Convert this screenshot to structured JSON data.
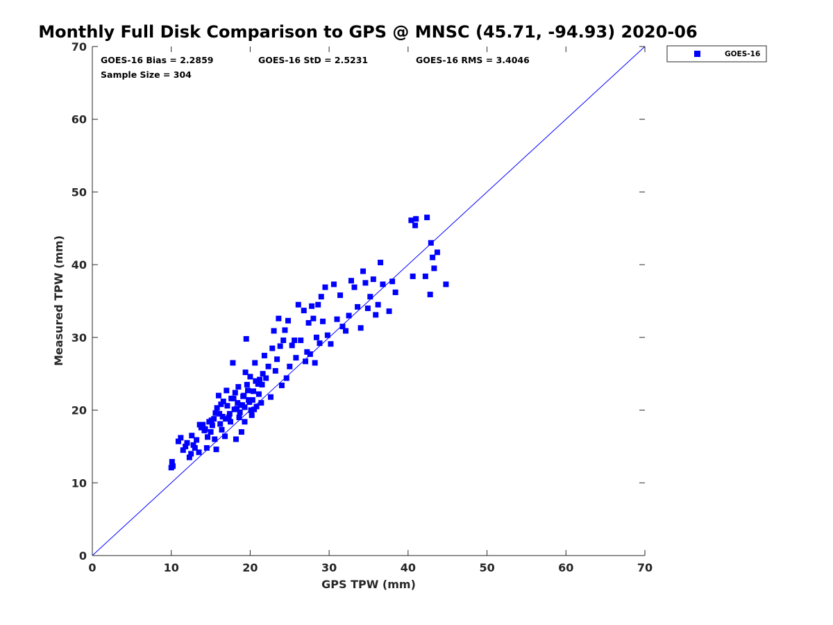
{
  "chart_data": {
    "type": "scatter",
    "title": "Monthly Full Disk Comparison to GPS @ MNSC (45.71, -94.93) 2020-06",
    "xlabel": "GPS TPW (mm)",
    "ylabel": "Measured TPW (mm)",
    "xlim": [
      0,
      70
    ],
    "ylim": [
      0,
      70
    ],
    "xticks": [
      0,
      10,
      20,
      30,
      40,
      50,
      60,
      70
    ],
    "yticks": [
      0,
      10,
      20,
      30,
      40,
      50,
      60,
      70
    ],
    "grid": false,
    "legend_position": "outside-top-right",
    "reference_line": {
      "name": "1:1 line",
      "color": "#0000ff",
      "from": [
        0,
        0
      ],
      "to": [
        70,
        70
      ]
    },
    "stats": {
      "bias": "GOES-16 Bias = 2.2859",
      "std": "GOES-16 StD = 2.5231",
      "rms": "GOES-16 RMS = 3.4046",
      "sample_size": "Sample Size = 304"
    },
    "series": [
      {
        "name": "GOES-16",
        "color": "#0000ff",
        "marker": "square",
        "points": [
          [
            10.0,
            12.1
          ],
          [
            10.1,
            12.9
          ],
          [
            10.2,
            12.3
          ],
          [
            10.9,
            15.7
          ],
          [
            11.2,
            16.2
          ],
          [
            11.5,
            14.5
          ],
          [
            11.8,
            15.0
          ],
          [
            12.0,
            15.5
          ],
          [
            12.3,
            13.5
          ],
          [
            12.5,
            14.0
          ],
          [
            12.6,
            16.5
          ],
          [
            12.8,
            15.2
          ],
          [
            13.0,
            14.8
          ],
          [
            13.2,
            15.9
          ],
          [
            13.5,
            14.2
          ],
          [
            13.8,
            17.6
          ],
          [
            14.0,
            18.0
          ],
          [
            14.2,
            17.2
          ],
          [
            14.5,
            14.8
          ],
          [
            14.6,
            16.3
          ],
          [
            14.8,
            18.4
          ],
          [
            15.0,
            17.0
          ],
          [
            15.2,
            17.9
          ],
          [
            15.4,
            18.8
          ],
          [
            15.5,
            16.0
          ],
          [
            15.7,
            14.6
          ],
          [
            15.8,
            20.3
          ],
          [
            16.0,
            22.0
          ],
          [
            16.1,
            19.5
          ],
          [
            16.2,
            18.1
          ],
          [
            16.4,
            17.3
          ],
          [
            16.5,
            19.1
          ],
          [
            16.6,
            21.2
          ],
          [
            16.8,
            16.4
          ],
          [
            17.0,
            22.7
          ],
          [
            17.1,
            20.6
          ],
          [
            17.3,
            19.0
          ],
          [
            17.5,
            18.4
          ],
          [
            17.6,
            21.6
          ],
          [
            17.8,
            26.5
          ],
          [
            18.0,
            20.1
          ],
          [
            18.1,
            22.4
          ],
          [
            18.2,
            16.0
          ],
          [
            18.4,
            21.0
          ],
          [
            18.5,
            23.2
          ],
          [
            18.7,
            19.7
          ],
          [
            18.9,
            17.0
          ],
          [
            19.0,
            20.7
          ],
          [
            19.2,
            22.0
          ],
          [
            19.3,
            18.4
          ],
          [
            19.4,
            25.2
          ],
          [
            19.5,
            29.8
          ],
          [
            19.6,
            23.5
          ],
          [
            19.8,
            21.4
          ],
          [
            20.0,
            24.6
          ],
          [
            20.1,
            20.0
          ],
          [
            20.2,
            19.3
          ],
          [
            20.4,
            22.6
          ],
          [
            20.6,
            26.5
          ],
          [
            20.8,
            20.5
          ],
          [
            21.0,
            23.6
          ],
          [
            21.2,
            24.2
          ],
          [
            21.4,
            21.0
          ],
          [
            21.6,
            25.0
          ],
          [
            21.8,
            27.5
          ],
          [
            22.0,
            24.4
          ],
          [
            22.3,
            26.0
          ],
          [
            22.6,
            21.8
          ],
          [
            22.8,
            28.5
          ],
          [
            23.0,
            30.9
          ],
          [
            23.2,
            25.4
          ],
          [
            23.4,
            27.0
          ],
          [
            23.6,
            32.6
          ],
          [
            23.8,
            28.8
          ],
          [
            24.0,
            23.4
          ],
          [
            24.2,
            29.6
          ],
          [
            24.4,
            31.0
          ],
          [
            24.6,
            24.4
          ],
          [
            24.8,
            32.3
          ],
          [
            25.0,
            26.0
          ],
          [
            25.3,
            28.9
          ],
          [
            25.6,
            29.6
          ],
          [
            25.8,
            27.2
          ],
          [
            26.1,
            34.5
          ],
          [
            26.4,
            29.6
          ],
          [
            26.8,
            33.7
          ],
          [
            27.0,
            26.7
          ],
          [
            27.2,
            28.0
          ],
          [
            27.4,
            32.0
          ],
          [
            27.6,
            27.7
          ],
          [
            27.8,
            34.3
          ],
          [
            28.0,
            32.6
          ],
          [
            28.2,
            26.5
          ],
          [
            28.4,
            30.0
          ],
          [
            28.6,
            34.5
          ],
          [
            28.8,
            29.2
          ],
          [
            29.0,
            35.6
          ],
          [
            29.2,
            32.2
          ],
          [
            29.5,
            36.9
          ],
          [
            29.8,
            30.3
          ],
          [
            30.2,
            29.1
          ],
          [
            30.6,
            37.3
          ],
          [
            31.0,
            32.5
          ],
          [
            31.4,
            35.8
          ],
          [
            31.7,
            31.5
          ],
          [
            32.1,
            30.9
          ],
          [
            32.5,
            33.0
          ],
          [
            32.8,
            37.8
          ],
          [
            33.2,
            36.9
          ],
          [
            33.6,
            34.2
          ],
          [
            34.0,
            31.3
          ],
          [
            34.3,
            39.1
          ],
          [
            34.6,
            37.5
          ],
          [
            34.9,
            34.0
          ],
          [
            35.2,
            35.6
          ],
          [
            35.6,
            38.0
          ],
          [
            35.9,
            33.1
          ],
          [
            36.2,
            34.5
          ],
          [
            36.5,
            40.3
          ],
          [
            36.8,
            37.3
          ],
          [
            37.6,
            33.6
          ],
          [
            38.0,
            37.7
          ],
          [
            38.4,
            36.2
          ],
          [
            40.4,
            46.1
          ],
          [
            40.6,
            38.4
          ],
          [
            40.9,
            45.4
          ],
          [
            41.0,
            46.3
          ],
          [
            42.2,
            38.4
          ],
          [
            42.4,
            46.5
          ],
          [
            42.8,
            35.9
          ],
          [
            42.9,
            43.0
          ],
          [
            43.1,
            41.0
          ],
          [
            43.3,
            39.5
          ],
          [
            43.7,
            41.7
          ],
          [
            44.8,
            37.3
          ],
          [
            13.6,
            18.0
          ],
          [
            14.3,
            17.4
          ],
          [
            15.1,
            18.6
          ],
          [
            15.6,
            19.6
          ],
          [
            16.3,
            20.8
          ],
          [
            16.9,
            18.8
          ],
          [
            17.4,
            19.5
          ],
          [
            17.9,
            21.6
          ],
          [
            18.3,
            20.2
          ],
          [
            18.6,
            19.0
          ],
          [
            18.8,
            20.7
          ],
          [
            19.1,
            21.9
          ],
          [
            19.3,
            20.4
          ],
          [
            19.7,
            22.7
          ],
          [
            19.9,
            21.1
          ],
          [
            20.3,
            21.4
          ],
          [
            20.5,
            20.1
          ],
          [
            20.7,
            24.0
          ],
          [
            21.1,
            22.2
          ],
          [
            21.5,
            23.5
          ]
        ]
      }
    ]
  }
}
